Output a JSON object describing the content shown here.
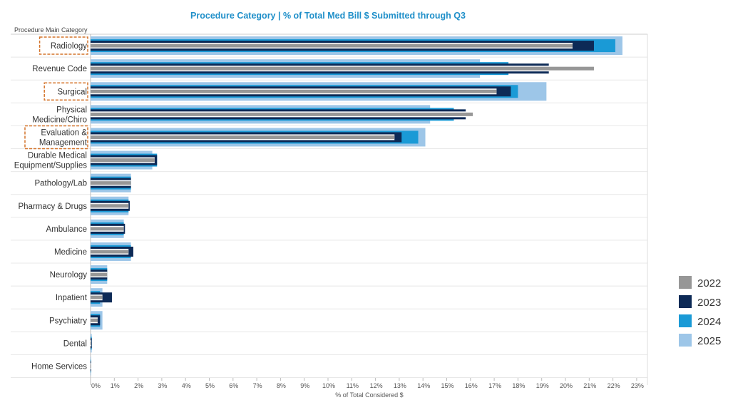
{
  "chart_data": {
    "type": "bar",
    "orientation": "horizontal",
    "title": "Procedure Category | % of Total Med Bill $ Submitted through Q3",
    "category_header": "Procedure Main Category",
    "xlabel": "% of Total Considered $",
    "xlim": [
      0,
      23.5
    ],
    "x_ticks": [
      "0%",
      "1%",
      "2%",
      "3%",
      "4%",
      "5%",
      "6%",
      "7%",
      "8%",
      "9%",
      "10%",
      "11%",
      "12%",
      "13%",
      "14%",
      "15%",
      "16%",
      "17%",
      "18%",
      "19%",
      "20%",
      "21%",
      "22%",
      "23%"
    ],
    "categories": [
      "Radiology",
      "Revenue Code",
      "Surgical",
      "Physical Medicine/Chiro",
      "Evaluation & Management",
      "Durable Medical Equipment/Supplies",
      "Pathology/Lab",
      "Pharmacy & Drugs",
      "Ambulance",
      "Medicine",
      "Neurology",
      "Inpatient",
      "Psychiatry",
      "Dental",
      "Home Services"
    ],
    "category_lines": [
      [
        "Radiology"
      ],
      [
        "Revenue Code"
      ],
      [
        "Surgical"
      ],
      [
        "Physical",
        "Medicine/Chiro"
      ],
      [
        "Evaluation &",
        "Management"
      ],
      [
        "Durable Medical",
        "Equipment/Supplies"
      ],
      [
        "Pathology/Lab"
      ],
      [
        "Pharmacy & Drugs"
      ],
      [
        "Ambulance"
      ],
      [
        "Medicine"
      ],
      [
        "Neurology"
      ],
      [
        "Inpatient"
      ],
      [
        "Psychiatry"
      ],
      [
        "Dental"
      ],
      [
        "Home Services"
      ]
    ],
    "highlighted_categories": [
      "Radiology",
      "Surgical",
      "Evaluation & Management"
    ],
    "series": [
      {
        "name": "2025",
        "color": "#9dc6e8",
        "values": [
          22.4,
          16.4,
          19.2,
          14.3,
          14.1,
          2.6,
          1.7,
          1.6,
          1.4,
          1.7,
          0.7,
          0.5,
          0.5,
          0.05,
          0.02
        ]
      },
      {
        "name": "2024",
        "color": "#1a9ad6",
        "values": [
          22.1,
          17.6,
          18.0,
          15.3,
          13.8,
          2.8,
          1.7,
          1.6,
          1.4,
          1.7,
          0.7,
          0.4,
          0.4,
          0.05,
          0.02
        ]
      },
      {
        "name": "2023",
        "color": "#0d2a56",
        "values": [
          21.2,
          19.3,
          17.7,
          15.8,
          13.1,
          2.8,
          1.7,
          1.65,
          1.45,
          1.8,
          0.7,
          0.9,
          0.4,
          0.05,
          0.02
        ]
      },
      {
        "name": "2022",
        "color": "#979797",
        "values": [
          20.3,
          21.2,
          17.1,
          16.1,
          12.8,
          2.7,
          1.7,
          1.6,
          1.4,
          1.6,
          0.7,
          0.5,
          0.3,
          0.03,
          0.01
        ]
      }
    ],
    "legend": {
      "position": "right",
      "order": [
        "2022",
        "2023",
        "2024",
        "2025"
      ]
    },
    "grid": true
  }
}
